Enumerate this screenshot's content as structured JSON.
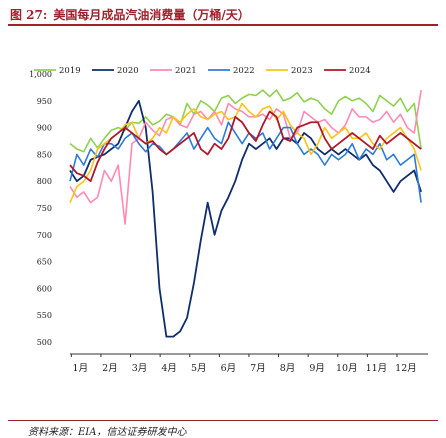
{
  "figure": {
    "number": "图 27:",
    "title": "美国每月成品汽油消费量（万桶/天）",
    "source": "资料来源：EIA，信达证券研发中心"
  },
  "chart_data": {
    "type": "line",
    "title": "美国每月成品汽油消费量（万桶/天）",
    "xlabel": "",
    "ylabel": "",
    "ylim": [
      500,
      1000
    ],
    "yticks": [
      500,
      550,
      600,
      650,
      700,
      750,
      800,
      850,
      900,
      950,
      "1,000"
    ],
    "xlim": [
      0,
      52
    ],
    "x_tick_labels": [
      "1月",
      "2月",
      "3月",
      "4月",
      "5月",
      "6月",
      "7月",
      "8月",
      "9月",
      "10月",
      "11月",
      "12月"
    ],
    "x_tick_positions": [
      1.5,
      5.8,
      10.1,
      14.4,
      18.7,
      23.0,
      27.3,
      31.6,
      35.9,
      40.2,
      44.5,
      48.8
    ],
    "legend_position": "top",
    "grid": false,
    "series": [
      {
        "name": "2019",
        "color": "#8fd14f",
        "values": [
          870,
          860,
          855,
          880,
          862,
          880,
          895,
          900,
          895,
          910,
          908,
          920,
          905,
          912,
          925,
          920,
          905,
          945,
          925,
          950,
          942,
          930,
          955,
          960,
          945,
          955,
          962,
          960,
          970,
          958,
          970,
          950,
          955,
          965,
          948,
          955,
          950,
          935,
          925,
          950,
          958,
          950,
          955,
          945,
          930,
          960,
          950,
          940,
          955,
          930,
          945,
          860
        ]
      },
      {
        "name": "2020",
        "color": "#0f2d6b",
        "values": [
          820,
          800,
          810,
          840,
          845,
          850,
          860,
          870,
          900,
          930,
          950,
          900,
          780,
          600,
          510,
          510,
          520,
          545,
          610,
          690,
          760,
          700,
          745,
          770,
          800,
          840,
          870,
          860,
          870,
          880,
          860,
          880,
          880,
          870,
          890,
          880,
          860,
          850,
          860,
          850,
          860,
          850,
          840,
          850,
          830,
          820,
          800,
          780,
          800,
          810,
          820,
          780
        ]
      },
      {
        "name": "2021",
        "color": "#ff8ab4",
        "values": [
          790,
          770,
          780,
          760,
          770,
          820,
          800,
          830,
          720,
          870,
          880,
          910,
          895,
          885,
          915,
          920,
          905,
          900,
          925,
          930,
          915,
          930,
          905,
          945,
          935,
          930,
          920,
          920,
          925,
          915,
          935,
          925,
          880,
          890,
          930,
          920,
          910,
          915,
          900,
          890,
          905,
          935,
          920,
          920,
          910,
          915,
          930,
          910,
          925,
          900,
          890,
          970
        ]
      },
      {
        "name": "2022",
        "color": "#2e7bd6",
        "values": [
          800,
          850,
          830,
          860,
          845,
          870,
          870,
          860,
          880,
          890,
          870,
          855,
          870,
          865,
          850,
          860,
          875,
          890,
          860,
          880,
          900,
          880,
          870,
          910,
          890,
          870,
          890,
          880,
          890,
          860,
          880,
          900,
          900,
          870,
          850,
          860,
          850,
          830,
          850,
          840,
          850,
          870,
          840,
          860,
          850,
          870,
          840,
          850,
          830,
          840,
          850,
          760
        ]
      },
      {
        "name": "2023",
        "color": "#ffc21a",
        "values": [
          760,
          790,
          800,
          820,
          860,
          870,
          880,
          890,
          905,
          910,
          880,
          870,
          880,
          900,
          890,
          920,
          910,
          925,
          935,
          920,
          915,
          925,
          930,
          915,
          920,
          945,
          930,
          920,
          935,
          940,
          915,
          930,
          905,
          890,
          880,
          850,
          870,
          900,
          880,
          890,
          900,
          880,
          880,
          890,
          870,
          860,
          880,
          890,
          900,
          880,
          860,
          820
        ]
      },
      {
        "name": "2024",
        "color": "#b0182a",
        "values": [
          830,
          815,
          810,
          800,
          835,
          860,
          880,
          890,
          900,
          890,
          880,
          870,
          875,
          860,
          850,
          860,
          870,
          880,
          890,
          860,
          850,
          870,
          860,
          880,
          920,
          910,
          890,
          875,
          905,
          930,
          920,
          880,
          875,
          900,
          905,
          910,
          910,
          880,
          860,
          870,
          880,
          890,
          880,
          870,
          860,
          885,
          870,
          880,
          890,
          880,
          870,
          860
        ]
      }
    ]
  }
}
